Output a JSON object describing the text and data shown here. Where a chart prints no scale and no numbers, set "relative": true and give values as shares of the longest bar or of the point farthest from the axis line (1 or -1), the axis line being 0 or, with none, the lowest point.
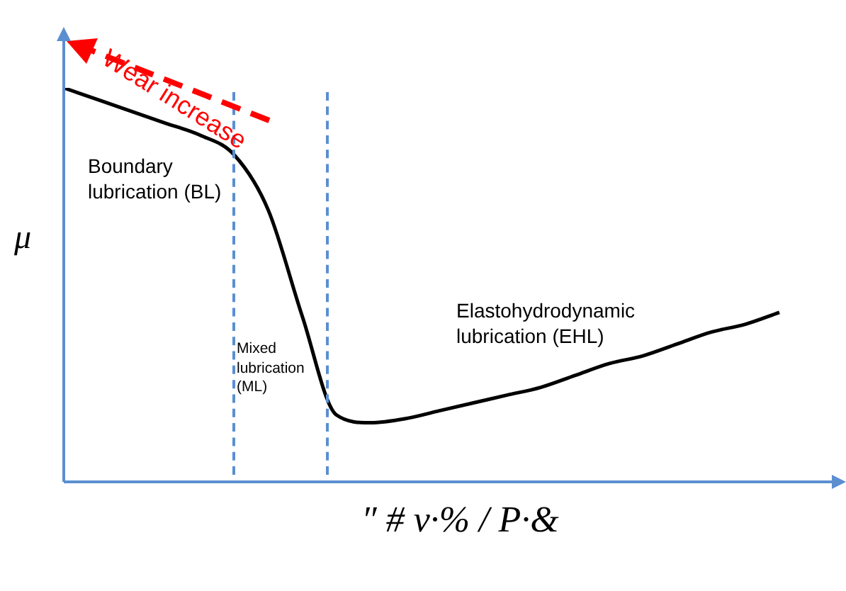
{
  "chart_data": {
    "type": "line",
    "relative": true,
    "xlabel": "″ # v·% / P·&",
    "ylabel": "μ",
    "categories": [
      null,
      null,
      null,
      null,
      null,
      null,
      null,
      null,
      null,
      null,
      null,
      null,
      null,
      null,
      null,
      null,
      null,
      null,
      null,
      null,
      null,
      null
    ],
    "series": [
      {
        "color": "#000000",
        "values": [
          1,
          0.97,
          0.94,
          0.91,
          0.88,
          0.83,
          0.69,
          0.42,
          0.17,
          0.15,
          0.16,
          0.18,
          0.2,
          0.22,
          0.24,
          0.27,
          0.3,
          0.32,
          0.35,
          0.38,
          0.4,
          0.43
        ]
      }
    ],
    "annotations": [
      "Wear increase",
      "Boundary lubrication (BL)",
      "Mixed lubrication (ML)",
      "Elastohydrodynamic lubrication (EHL)"
    ],
    "legend": false
  }
}
